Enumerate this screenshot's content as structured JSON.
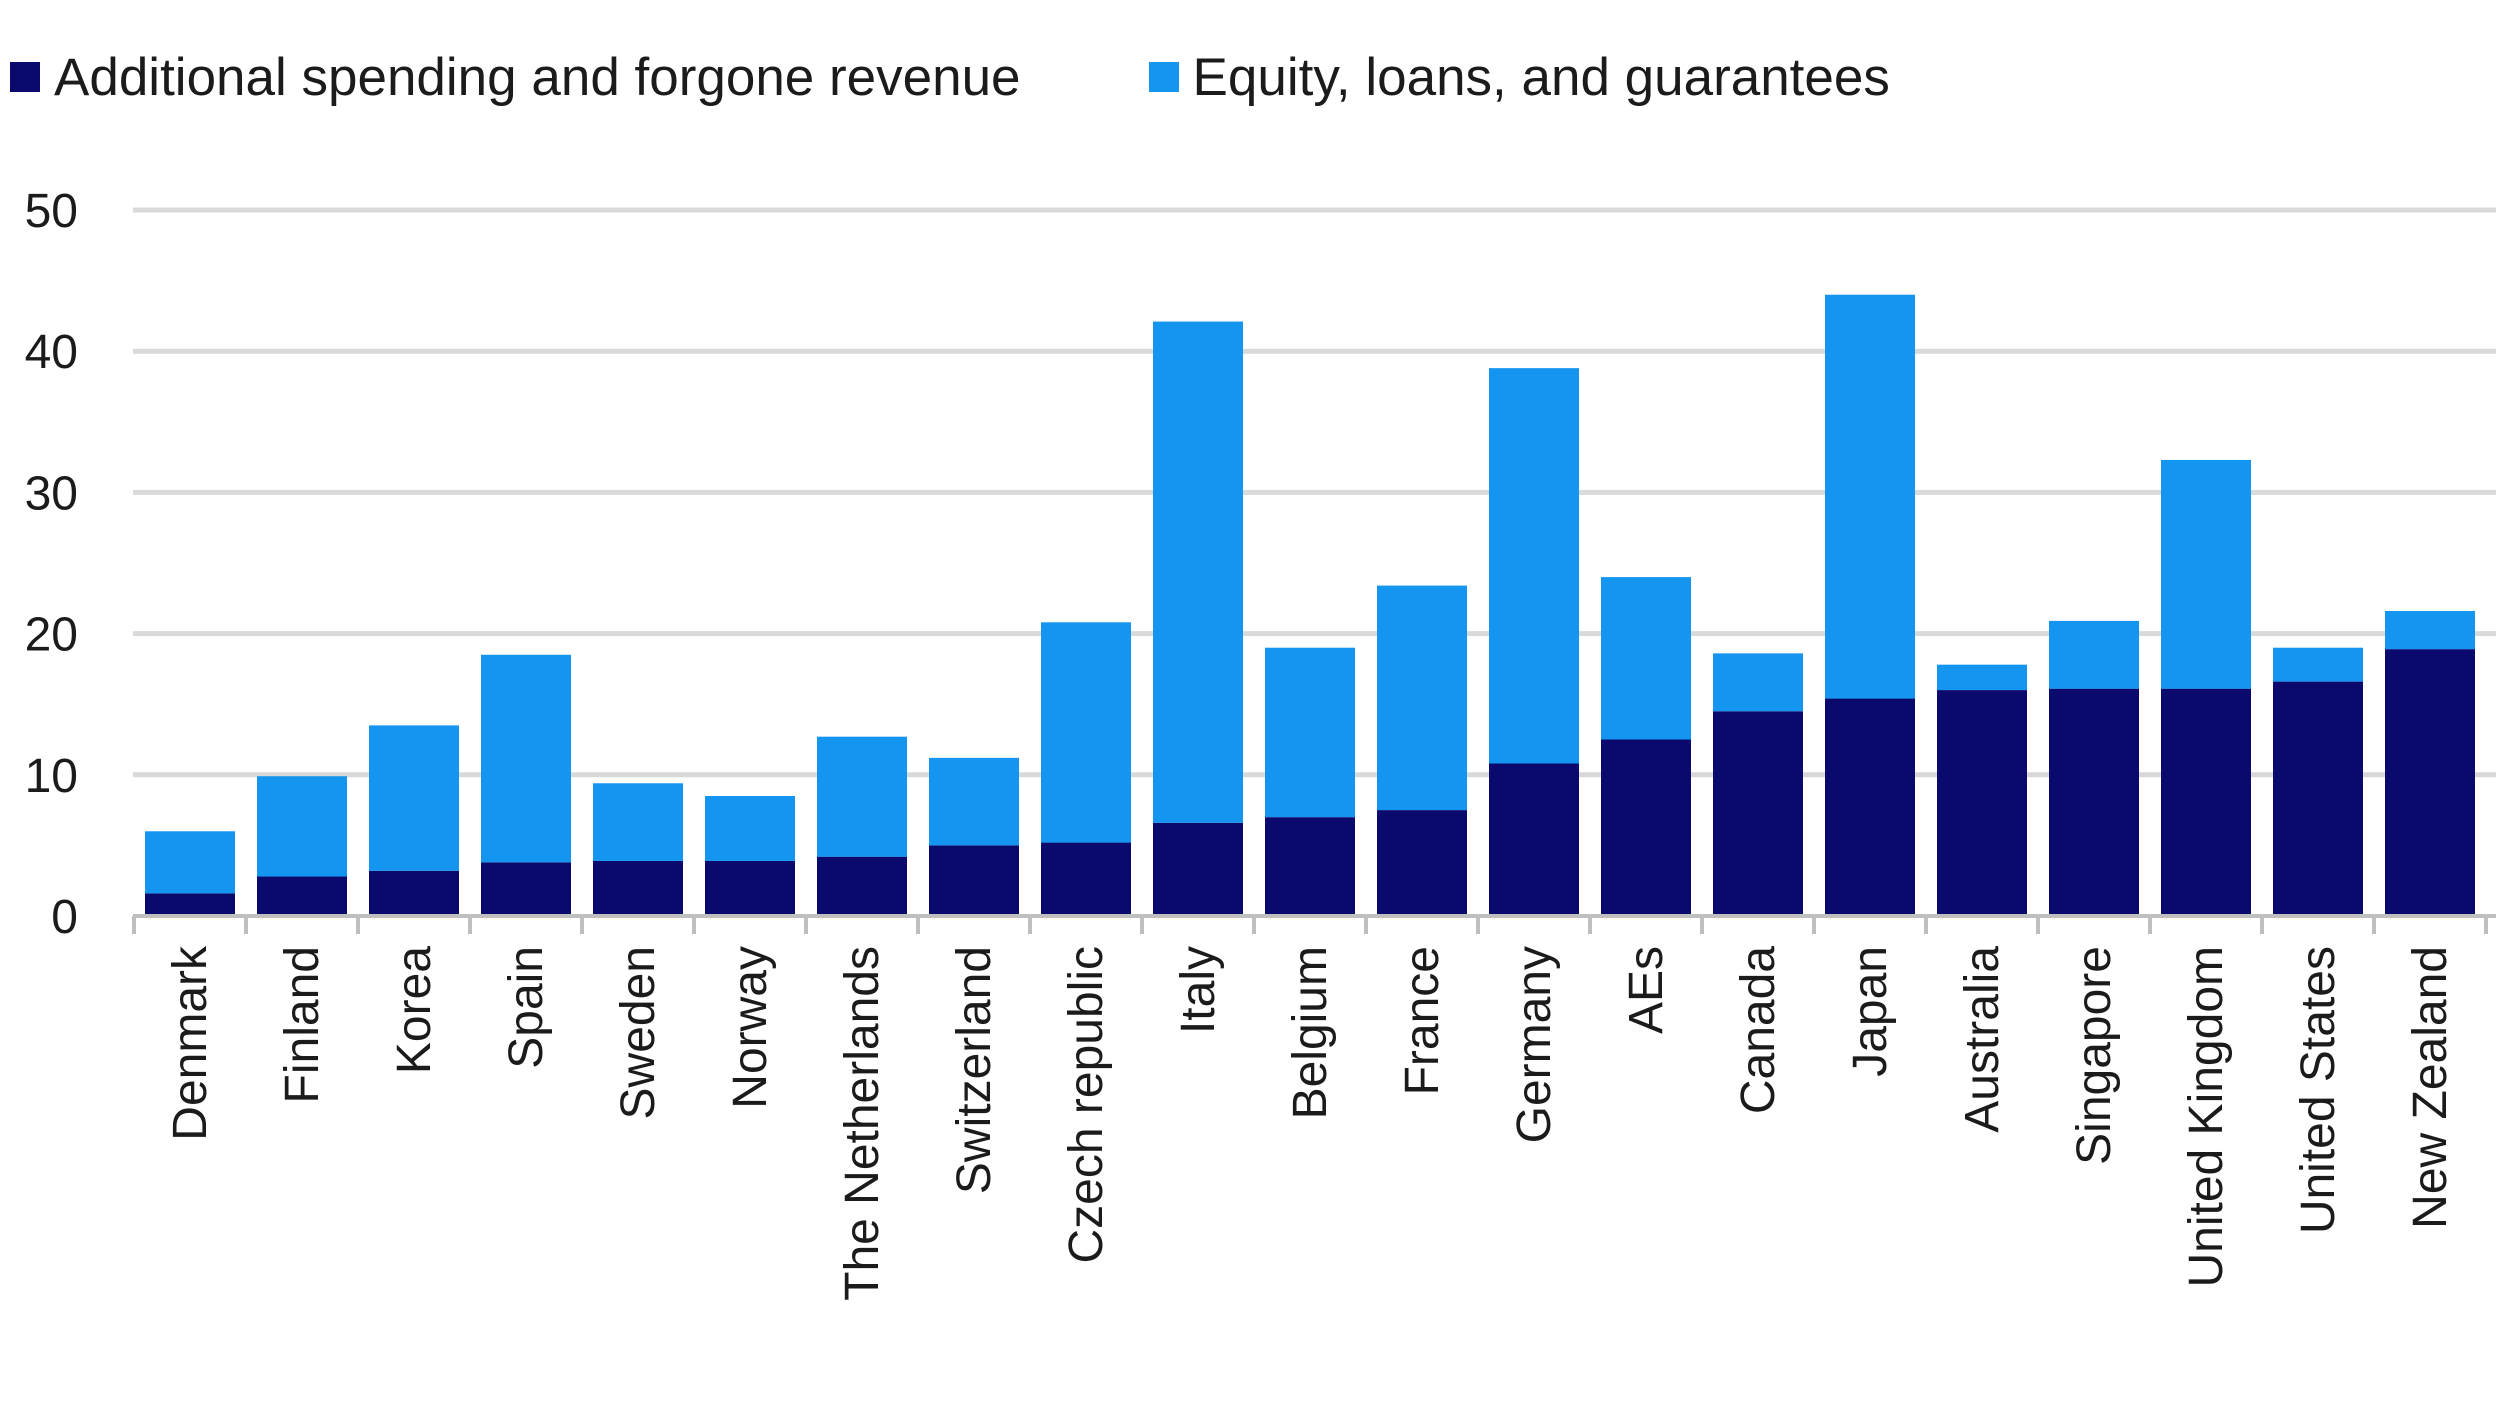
{
  "chart_data": {
    "type": "bar",
    "stacked": true,
    "title": "",
    "xlabel": "",
    "ylabel": "",
    "ylim": [
      0,
      50
    ],
    "yticks": [
      0,
      10,
      20,
      30,
      40,
      50
    ],
    "grid": true,
    "legend_position": "top-left",
    "categories": [
      "Denmark",
      "Finland",
      "Korea",
      "Spain",
      "Sweden",
      "Norway",
      "The Netherlands",
      "Switzerland",
      "Czech republic",
      "Italy",
      "Belgium",
      "France",
      "Germany",
      "AEs",
      "Canada",
      "Japan",
      "Australia",
      "Singapore",
      "United Kingdom",
      "United States",
      "New Zealand"
    ],
    "series": [
      {
        "name": "Additional spending and forgone revenue",
        "color": "#0a0a6e",
        "values": [
          1.6,
          2.8,
          3.2,
          3.8,
          3.9,
          3.9,
          4.2,
          5.0,
          5.2,
          6.6,
          7.0,
          7.5,
          10.8,
          12.5,
          14.5,
          15.4,
          16.0,
          16.1,
          16.1,
          16.6,
          18.9
        ]
      },
      {
        "name": "Equity, loans, and guarantees",
        "color": "#1395f0",
        "values": [
          4.4,
          7.1,
          10.3,
          14.7,
          5.5,
          4.6,
          8.5,
          6.2,
          15.6,
          35.5,
          12.0,
          15.9,
          28.0,
          11.5,
          4.1,
          28.6,
          1.8,
          4.8,
          16.2,
          2.4,
          2.7
        ]
      }
    ]
  }
}
